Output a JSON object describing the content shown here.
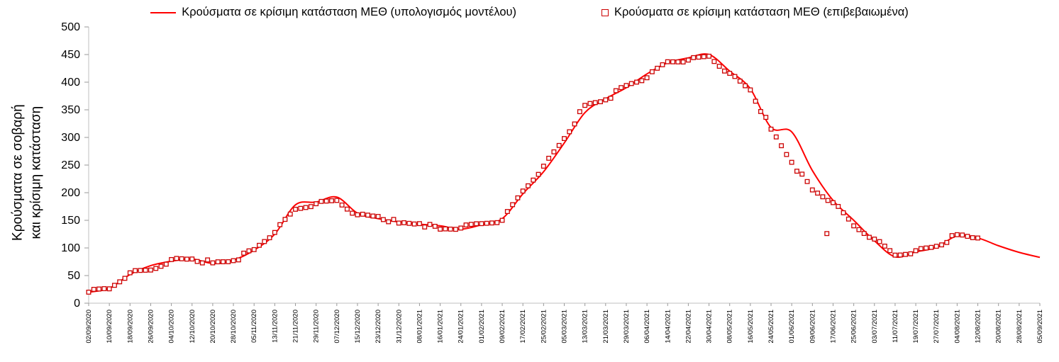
{
  "y_axis_title_line1": "Κρούσματα σε σοβαρή",
  "y_axis_title_line2": "και κρίσιμη κατάσταση",
  "legend": {
    "model_label": "Κρούσματα σε κρίσιμη κατάσταση ΜΕΘ (υπολογισμός μοντέλου)",
    "confirmed_label": "Κρούσματα σε κρίσιμη κατάσταση ΜΕΘ (επιβεβαιωμένα)"
  },
  "colors": {
    "model_line": "#FF0000",
    "confirmed_marker": "#CC0000",
    "axis": "#bfbfbf",
    "tick": "#999999",
    "text": "#000000"
  },
  "chart_data": {
    "type": "line",
    "grid": false,
    "legend_position": "top",
    "ylim": [
      0,
      500
    ],
    "ytick_step": 50,
    "ylabel": "Κρούσματα σε σοβαρή και κρίσιμη κατάσταση",
    "xlabel": "",
    "title": "",
    "categories": [
      "02/09/2020",
      "10/09/2020",
      "18/09/2020",
      "26/09/2020",
      "04/10/2020",
      "12/10/2020",
      "20/10/2020",
      "28/10/2020",
      "05/11/2020",
      "13/11/2020",
      "21/11/2020",
      "29/11/2020",
      "07/12/2020",
      "15/12/2020",
      "23/12/2020",
      "31/12/2020",
      "08/01/2021",
      "16/01/2021",
      "24/01/2021",
      "01/02/2021",
      "09/02/2021",
      "17/02/2021",
      "25/02/2021",
      "05/03/2021",
      "13/03/2021",
      "21/03/2021",
      "29/03/2021",
      "06/04/2021",
      "14/04/2021",
      "22/04/2021",
      "30/04/2021",
      "08/05/2021",
      "16/05/2021",
      "24/05/2021",
      "01/06/2021",
      "09/06/2021",
      "17/06/2021",
      "25/06/2021",
      "03/07/2021",
      "11/07/2021",
      "19/07/2021",
      "27/07/2021",
      "04/08/2021",
      "12/08/2021",
      "20/08/2021",
      "28/08/2021",
      "05/09/2021"
    ],
    "series": [
      {
        "name": "Κρούσματα σε κρίσιμη κατάσταση ΜΕΘ (υπολογισμός μοντέλου)",
        "type": "line",
        "color": "#FF0000",
        "values": [
          20,
          27,
          52,
          68,
          76,
          80,
          72,
          78,
          96,
          125,
          178,
          183,
          192,
          163,
          153,
          147,
          143,
          140,
          134,
          142,
          153,
          198,
          238,
          290,
          345,
          370,
          390,
          415,
          435,
          444,
          450,
          420,
          388,
          318,
          310,
          240,
          186,
          150,
          113,
          84,
          93,
          101,
          122,
          118,
          104,
          92,
          83
        ]
      },
      {
        "name": "Κρούσματα σε κρίσιμη κατάσταση ΜΕΘ (επιβεβαιωμένα)",
        "type": "scatter",
        "marker": "open-square",
        "color": "#CC0000",
        "values": [
          20,
          26,
          55,
          60,
          79,
          80,
          73,
          77,
          97,
          128,
          170,
          180,
          186,
          160,
          157,
          145,
          144,
          134,
          136,
          144,
          150,
          203,
          248,
          298,
          358,
          368,
          394,
          408,
          437,
          440,
          447,
          416,
          386,
          315,
          255,
          205,
          182,
          140,
          116,
          87,
          95,
          103,
          124,
          118,
          null,
          null,
          null
        ]
      }
    ],
    "outlier_points": [
      {
        "category_index": 35.7,
        "value": 126
      }
    ]
  }
}
